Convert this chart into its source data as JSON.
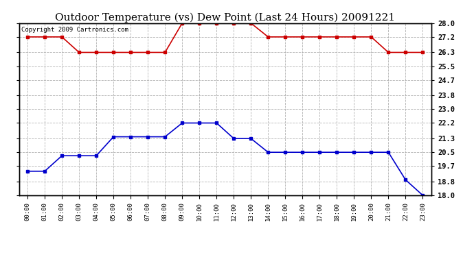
{
  "title": "Outdoor Temperature (vs) Dew Point (Last 24 Hours) 20091221",
  "copyright": "Copyright 2009 Cartronics.com",
  "hours": [
    "00:00",
    "01:00",
    "02:00",
    "03:00",
    "04:00",
    "05:00",
    "06:00",
    "07:00",
    "08:00",
    "09:00",
    "10:00",
    "11:00",
    "12:00",
    "13:00",
    "14:00",
    "15:00",
    "16:00",
    "17:00",
    "18:00",
    "19:00",
    "20:00",
    "21:00",
    "22:00",
    "23:00"
  ],
  "temp": [
    27.2,
    27.2,
    27.2,
    26.3,
    26.3,
    26.3,
    26.3,
    26.3,
    26.3,
    28.0,
    28.0,
    28.0,
    28.0,
    28.0,
    27.2,
    27.2,
    27.2,
    27.2,
    27.2,
    27.2,
    27.2,
    26.3,
    26.3,
    26.3
  ],
  "dew": [
    19.4,
    19.4,
    20.3,
    20.3,
    20.3,
    21.4,
    21.4,
    21.4,
    21.4,
    22.2,
    22.2,
    22.2,
    21.3,
    21.3,
    20.5,
    20.5,
    20.5,
    20.5,
    20.5,
    20.5,
    20.5,
    20.5,
    18.9,
    18.0
  ],
  "ylim": [
    18.0,
    28.0
  ],
  "yticks": [
    18.0,
    18.8,
    19.7,
    20.5,
    21.3,
    22.2,
    23.0,
    23.8,
    24.7,
    25.5,
    26.3,
    27.2,
    28.0
  ],
  "temp_color": "#cc0000",
  "dew_color": "#0000cc",
  "bg_color": "#ffffff",
  "grid_color": "#aaaaaa",
  "title_fontsize": 11,
  "copyright_fontsize": 6.5,
  "marker": "s",
  "marker_size": 3,
  "linewidth": 1.2
}
